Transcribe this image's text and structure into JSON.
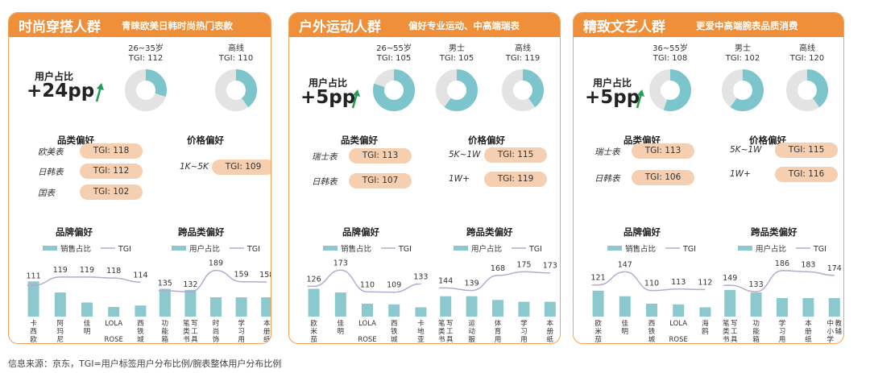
{
  "footnote": "信息来源：京东，TGI=用户标签用户分布比例/腕表整体用户分布比例",
  "colors": {
    "accent": "#ef8f3a",
    "border": "#f2a25e",
    "pill": "#f5cfb0",
    "bar": "#8cc9cf",
    "tgi_line": "#b9a8cf",
    "donut_fill": "#7cc5cc",
    "donut_rest": "#e3e3e3",
    "arrow": "#1f9e54"
  },
  "legend": {
    "sales_share": "销售占比",
    "user_share": "用户占比",
    "tgi": "TGI"
  },
  "panels": [
    {
      "title": "时尚穿搭人群",
      "subtitle": "青睐欧美日韩时尚热门表款",
      "share_label": "用户占比",
      "share_value": "+24pp",
      "donuts": [
        {
          "label1": "26~35岁",
          "label2": "TGI: 112",
          "fraction": 0.3
        },
        {
          "label1": "高线",
          "label2": "TGI: 110",
          "fraction": 0.4
        }
      ],
      "category_title": "品类偏好",
      "category_items": [
        {
          "name": "欧美表",
          "tgi": "TGI: 118"
        },
        {
          "name": "日韩表",
          "tgi": "TGI: 112"
        },
        {
          "name": "国表",
          "tgi": "TGI: 102"
        }
      ],
      "price_title": "价格偏好",
      "price_items": [
        {
          "name": "1K~5K",
          "tgi": "TGI: 109"
        }
      ],
      "brand_title": "品牌偏好",
      "cross_title": "跨品类偏好"
    },
    {
      "title": "户外运动人群",
      "subtitle": "偏好专业运动、中高端瑞表",
      "share_label": "用户占比",
      "share_value": "+5pp",
      "donuts": [
        {
          "label1": "26~55岁",
          "label2": "TGI: 105",
          "fraction": 0.8
        },
        {
          "label1": "男士",
          "label2": "TGI: 105",
          "fraction": 0.6
        },
        {
          "label1": "高线",
          "label2": "TGI: 119",
          "fraction": 0.4
        }
      ],
      "category_title": "品类偏好",
      "category_items": [
        {
          "name": "瑞士表",
          "tgi": "TGI: 113"
        },
        {
          "name": "日韩表",
          "tgi": "TGI: 107"
        }
      ],
      "price_title": "价格偏好",
      "price_items": [
        {
          "name": "5K~1W",
          "tgi": "TGI: 115"
        },
        {
          "name": "1W+",
          "tgi": "TGI: 119"
        }
      ],
      "brand_title": "品牌偏好",
      "cross_title": "跨品类偏好"
    },
    {
      "title": "精致文艺人群",
      "subtitle": "更爱中高端腕表品质消费",
      "share_label": "用户占比",
      "share_value": "+5pp",
      "donuts": [
        {
          "label1": "36~55岁",
          "label2": "TGI: 108",
          "fraction": 0.55
        },
        {
          "label1": "男士",
          "label2": "TGI: 102",
          "fraction": 0.6
        },
        {
          "label1": "高线",
          "label2": "TGI: 120",
          "fraction": 0.4
        }
      ],
      "category_title": "品类偏好",
      "category_items": [
        {
          "name": "瑞士表",
          "tgi": "TGI: 113"
        },
        {
          "name": "日韩表",
          "tgi": "TGI: 106"
        }
      ],
      "price_title": "价格偏好",
      "price_items": [
        {
          "name": "5K~1W",
          "tgi": "TGI: 115"
        },
        {
          "name": "1W+",
          "tgi": "TGI: 116"
        }
      ],
      "brand_title": "品牌偏好",
      "cross_title": "跨品类偏好"
    }
  ],
  "chart_data": [
    {
      "id": "p0-brand",
      "type": "bar",
      "title": "品牌偏好",
      "legend_bar": "销售占比",
      "legend_line": "TGI",
      "categories": [
        "卡西欧",
        "阿玛尼",
        "佳明",
        "LOLA ROSE",
        "西铁城"
      ],
      "bar_share": [
        0.95,
        0.65,
        0.38,
        0.26,
        0.3
      ],
      "tgi": [
        111,
        119,
        119,
        118,
        114
      ]
    },
    {
      "id": "p0-cross",
      "type": "bar",
      "title": "跨品类偏好",
      "legend_bar": "用户占比",
      "legend_line": "TGI",
      "categories": [
        "功能箱包",
        "笔类/书写工具",
        "时尚饰品",
        "学习用品",
        "本册纸签"
      ],
      "bar_share": [
        0.75,
        0.72,
        0.52,
        0.52,
        0.52
      ],
      "tgi": [
        135,
        132,
        189,
        159,
        158
      ]
    },
    {
      "id": "p1-brand",
      "type": "bar",
      "title": "品牌偏好",
      "legend_bar": "销售占比",
      "legend_line": "TGI",
      "categories": [
        "欧米茄",
        "佳明",
        "LOLA ROSE",
        "西铁城",
        "卡地亚"
      ],
      "bar_share": [
        0.75,
        0.65,
        0.35,
        0.33,
        0.25
      ],
      "tgi": [
        126,
        173,
        110,
        109,
        133
      ]
    },
    {
      "id": "p1-cross",
      "type": "bar",
      "title": "跨品类偏好",
      "legend_bar": "用户占比",
      "legend_line": "TGI",
      "categories": [
        "笔类/书写工具",
        "运动服饰",
        "体育用品",
        "学习用品",
        "本册纸签"
      ],
      "bar_share": [
        0.55,
        0.55,
        0.45,
        0.4,
        0.4
      ],
      "tgi": [
        144,
        139,
        168,
        175,
        173
      ]
    },
    {
      "id": "p2-brand",
      "type": "bar",
      "title": "品牌偏好",
      "legend_bar": "销售占比",
      "legend_line": "TGI",
      "categories": [
        "欧米茄",
        "佳明",
        "西铁城",
        "LOLA ROSE",
        "海鸥"
      ],
      "bar_share": [
        0.7,
        0.55,
        0.35,
        0.33,
        0.25
      ],
      "tgi": [
        121,
        147,
        110,
        113,
        112
      ]
    },
    {
      "id": "p2-cross",
      "type": "bar",
      "title": "跨品类偏好",
      "legend_bar": "用户占比",
      "legend_line": "TGI",
      "categories": [
        "笔类/书写工具",
        "功能箱包",
        "学习用品",
        "本册纸签",
        "中小学教辅"
      ],
      "bar_share": [
        0.72,
        0.65,
        0.5,
        0.5,
        0.5
      ],
      "tgi": [
        149,
        133,
        186,
        183,
        174
      ]
    }
  ]
}
